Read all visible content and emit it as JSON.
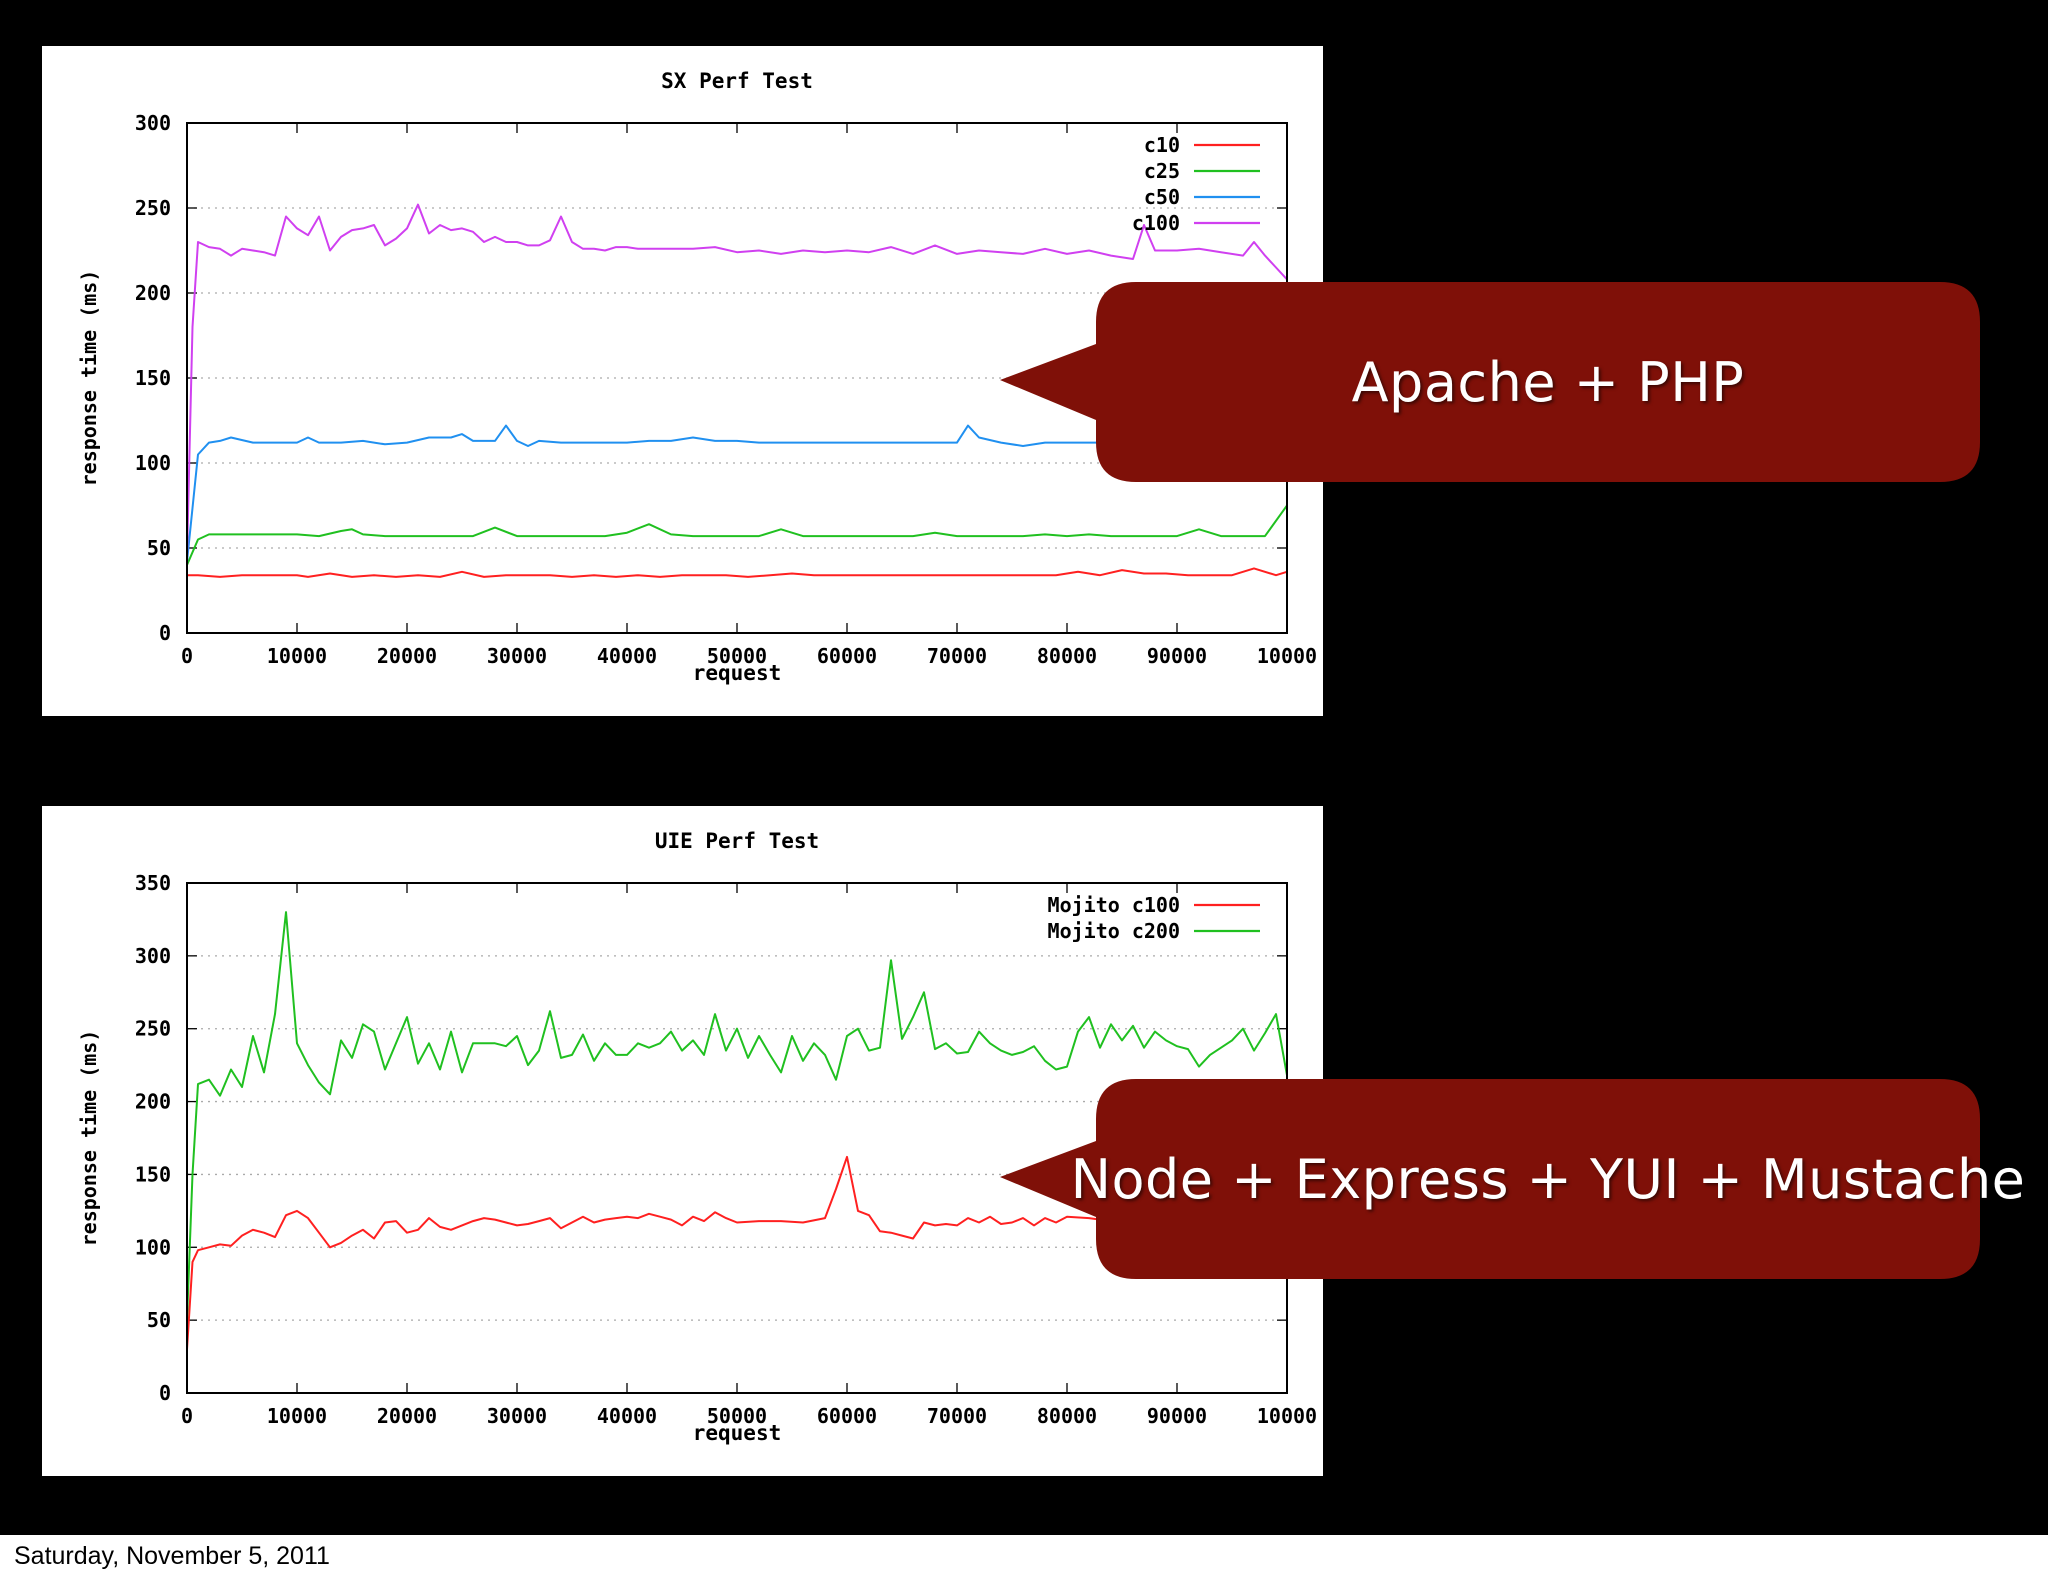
{
  "callouts": {
    "apache": "Apache + PHP",
    "node": "Node + Express + YUI + Mustache",
    "fill_color": "#7f1008"
  },
  "footer": {
    "date": "Saturday, November 5, 2011"
  },
  "chart_data": [
    {
      "type": "line",
      "title": "SX Perf Test",
      "xlabel": "request",
      "ylabel": "response time (ms)",
      "xlim": [
        0,
        100000
      ],
      "ylim": [
        0,
        300
      ],
      "xticks": [
        "0",
        "10000",
        "20000",
        "30000",
        "40000",
        "50000",
        "60000",
        "70000",
        "80000",
        "90000",
        "10000"
      ],
      "yticks": [
        "0",
        "50",
        "100",
        "150",
        "200",
        "250",
        "300"
      ],
      "grid": "horizontal dotted",
      "legend_position": "top-right",
      "series": [
        {
          "name": "c10",
          "color": "#ff2020",
          "x": [
            0,
            1000,
            3000,
            5000,
            7000,
            9000,
            10000,
            11000,
            13000,
            15000,
            17000,
            19000,
            21000,
            23000,
            25000,
            27000,
            29000,
            31000,
            33000,
            35000,
            37000,
            39000,
            41000,
            43000,
            45000,
            47000,
            49000,
            51000,
            53000,
            55000,
            57000,
            59000,
            61000,
            63000,
            65000,
            67000,
            69000,
            71000,
            73000,
            75000,
            77000,
            79000,
            81000,
            83000,
            85000,
            87000,
            89000,
            91000,
            93000,
            95000,
            97000,
            99000,
            100000
          ],
          "y": [
            34,
            34,
            33,
            34,
            34,
            34,
            34,
            33,
            35,
            33,
            34,
            33,
            34,
            33,
            36,
            33,
            34,
            34,
            34,
            33,
            34,
            33,
            34,
            33,
            34,
            34,
            34,
            33,
            34,
            35,
            34,
            34,
            34,
            34,
            34,
            34,
            34,
            34,
            34,
            34,
            34,
            34,
            36,
            34,
            37,
            35,
            35,
            34,
            34,
            34,
            38,
            34,
            36
          ]
        },
        {
          "name": "c25",
          "color": "#20c020",
          "x": [
            0,
            1000,
            2000,
            4000,
            6000,
            8000,
            10000,
            12000,
            14000,
            15000,
            16000,
            18000,
            20000,
            22000,
            24000,
            26000,
            28000,
            30000,
            32000,
            34000,
            36000,
            38000,
            40000,
            42000,
            44000,
            46000,
            48000,
            50000,
            52000,
            54000,
            56000,
            58000,
            60000,
            62000,
            64000,
            66000,
            68000,
            70000,
            72000,
            74000,
            76000,
            78000,
            80000,
            82000,
            84000,
            86000,
            88000,
            90000,
            92000,
            94000,
            96000,
            98000,
            100000
          ],
          "y": [
            40,
            55,
            58,
            58,
            58,
            58,
            58,
            57,
            60,
            61,
            58,
            57,
            57,
            57,
            57,
            57,
            62,
            57,
            57,
            57,
            57,
            57,
            59,
            64,
            58,
            57,
            57,
            57,
            57,
            61,
            57,
            57,
            57,
            57,
            57,
            57,
            59,
            57,
            57,
            57,
            57,
            58,
            57,
            58,
            57,
            57,
            57,
            57,
            61,
            57,
            57,
            57,
            75
          ]
        },
        {
          "name": "c50",
          "color": "#2090f0",
          "x": [
            0,
            1000,
            2000,
            3000,
            4000,
            6000,
            8000,
            10000,
            11000,
            12000,
            14000,
            16000,
            18000,
            20000,
            22000,
            24000,
            25000,
            26000,
            28000,
            29000,
            30000,
            31000,
            32000,
            34000,
            36000,
            38000,
            40000,
            42000,
            44000,
            46000,
            48000,
            50000,
            52000,
            54000,
            56000,
            58000,
            60000,
            62000,
            64000,
            66000,
            68000,
            70000,
            71000,
            72000,
            74000,
            76000,
            78000,
            80000,
            82000,
            84000,
            86000
          ],
          "y": [
            42,
            105,
            112,
            113,
            115,
            112,
            112,
            112,
            115,
            112,
            112,
            113,
            111,
            112,
            115,
            115,
            117,
            113,
            113,
            122,
            113,
            110,
            113,
            112,
            112,
            112,
            112,
            113,
            113,
            115,
            113,
            113,
            112,
            112,
            112,
            112,
            112,
            112,
            112,
            112,
            112,
            112,
            122,
            115,
            112,
            110,
            112,
            112,
            112,
            112,
            112
          ]
        },
        {
          "name": "c100",
          "color": "#d040f0",
          "x": [
            0,
            500,
            1000,
            2000,
            3000,
            4000,
            5000,
            6000,
            7000,
            8000,
            9000,
            10000,
            11000,
            12000,
            13000,
            14000,
            15000,
            16000,
            17000,
            18000,
            19000,
            20000,
            21000,
            22000,
            23000,
            24000,
            25000,
            26000,
            27000,
            28000,
            29000,
            30000,
            31000,
            32000,
            33000,
            34000,
            35000,
            36000,
            37000,
            38000,
            39000,
            40000,
            41000,
            42000,
            44000,
            46000,
            48000,
            50000,
            52000,
            54000,
            56000,
            58000,
            60000,
            62000,
            64000,
            66000,
            68000,
            70000,
            72000,
            74000,
            76000,
            78000,
            80000,
            82000,
            84000,
            86000,
            87000,
            88000,
            90000,
            92000,
            94000,
            96000,
            97000,
            98000,
            99000,
            100000
          ],
          "y": [
            45,
            180,
            230,
            227,
            226,
            222,
            226,
            225,
            224,
            222,
            245,
            238,
            234,
            245,
            225,
            233,
            237,
            238,
            240,
            228,
            232,
            238,
            252,
            235,
            240,
            237,
            238,
            236,
            230,
            233,
            230,
            230,
            228,
            228,
            231,
            245,
            230,
            226,
            226,
            225,
            227,
            227,
            226,
            226,
            226,
            226,
            227,
            224,
            225,
            223,
            225,
            224,
            225,
            224,
            227,
            223,
            228,
            223,
            225,
            224,
            223,
            226,
            223,
            225,
            222,
            220,
            240,
            225,
            225,
            226,
            224,
            222,
            230,
            222,
            215,
            208
          ]
        }
      ]
    },
    {
      "type": "line",
      "title": "UIE Perf Test",
      "xlabel": "request",
      "ylabel": "response time (ms)",
      "xlim": [
        0,
        100000
      ],
      "ylim": [
        0,
        350
      ],
      "xticks": [
        "0",
        "10000",
        "20000",
        "30000",
        "40000",
        "50000",
        "60000",
        "70000",
        "80000",
        "90000",
        "10000"
      ],
      "yticks": [
        "0",
        "50",
        "100",
        "150",
        "200",
        "250",
        "300",
        "350"
      ],
      "grid": "horizontal dotted",
      "legend_position": "top-right",
      "series": [
        {
          "name": "Mojito c100",
          "color": "#ff2020",
          "x": [
            0,
            500,
            1000,
            2000,
            3000,
            4000,
            5000,
            6000,
            7000,
            8000,
            9000,
            10000,
            11000,
            12000,
            13000,
            14000,
            15000,
            16000,
            17000,
            18000,
            19000,
            20000,
            21000,
            22000,
            23000,
            24000,
            25000,
            26000,
            27000,
            28000,
            29000,
            30000,
            31000,
            32000,
            33000,
            34000,
            35000,
            36000,
            37000,
            38000,
            39000,
            40000,
            41000,
            42000,
            43000,
            44000,
            45000,
            46000,
            47000,
            48000,
            49000,
            50000,
            52000,
            54000,
            56000,
            58000,
            59000,
            60000,
            61000,
            62000,
            63000,
            64000,
            65000,
            66000,
            67000,
            68000,
            69000,
            70000,
            71000,
            72000,
            73000,
            74000,
            75000,
            76000,
            77000,
            78000,
            79000,
            80000,
            82000,
            84000
          ],
          "y": [
            30,
            90,
            98,
            100,
            102,
            101,
            108,
            112,
            110,
            107,
            122,
            125,
            120,
            110,
            100,
            103,
            108,
            112,
            106,
            117,
            118,
            110,
            112,
            120,
            114,
            112,
            115,
            118,
            120,
            119,
            117,
            115,
            116,
            118,
            120,
            113,
            117,
            121,
            117,
            119,
            120,
            121,
            120,
            123,
            121,
            119,
            115,
            121,
            118,
            124,
            120,
            117,
            118,
            118,
            117,
            120,
            140,
            162,
            125,
            122,
            111,
            110,
            108,
            106,
            117,
            115,
            116,
            115,
            120,
            117,
            121,
            116,
            117,
            120,
            115,
            120,
            117,
            121,
            120,
            118
          ]
        },
        {
          "name": "Mojito c200",
          "color": "#20c020",
          "x": [
            0,
            500,
            1000,
            2000,
            3000,
            4000,
            5000,
            6000,
            7000,
            8000,
            9000,
            10000,
            11000,
            12000,
            13000,
            14000,
            15000,
            16000,
            17000,
            18000,
            19000,
            20000,
            21000,
            22000,
            23000,
            24000,
            25000,
            26000,
            27000,
            28000,
            29000,
            30000,
            31000,
            32000,
            33000,
            34000,
            35000,
            36000,
            37000,
            38000,
            39000,
            40000,
            41000,
            42000,
            43000,
            44000,
            45000,
            46000,
            47000,
            48000,
            49000,
            50000,
            51000,
            52000,
            53000,
            54000,
            55000,
            56000,
            57000,
            58000,
            59000,
            60000,
            61000,
            62000,
            63000,
            64000,
            65000,
            66000,
            67000,
            68000,
            69000,
            70000,
            71000,
            72000,
            73000,
            74000,
            75000,
            76000,
            77000,
            78000,
            79000,
            80000,
            81000,
            82000,
            83000,
            84000,
            85000,
            86000,
            87000,
            88000,
            89000,
            90000,
            91000,
            92000,
            93000,
            94000,
            95000,
            96000,
            97000,
            98000,
            99000,
            100000
          ],
          "y": [
            50,
            150,
            212,
            215,
            204,
            222,
            210,
            245,
            220,
            260,
            330,
            240,
            225,
            213,
            205,
            242,
            230,
            253,
            248,
            222,
            240,
            258,
            226,
            240,
            222,
            248,
            220,
            240,
            240,
            240,
            238,
            245,
            225,
            235,
            262,
            230,
            232,
            246,
            228,
            240,
            232,
            232,
            240,
            237,
            240,
            248,
            235,
            242,
            232,
            260,
            235,
            250,
            230,
            245,
            232,
            220,
            245,
            228,
            240,
            232,
            215,
            245,
            250,
            235,
            237,
            297,
            243,
            258,
            275,
            236,
            240,
            233,
            234,
            248,
            240,
            235,
            232,
            234,
            238,
            228,
            222,
            224,
            248,
            258,
            237,
            253,
            242,
            252,
            237,
            248,
            242,
            238,
            236,
            224,
            232,
            237,
            242,
            250,
            235,
            247,
            260,
            218
          ]
        }
      ]
    }
  ]
}
